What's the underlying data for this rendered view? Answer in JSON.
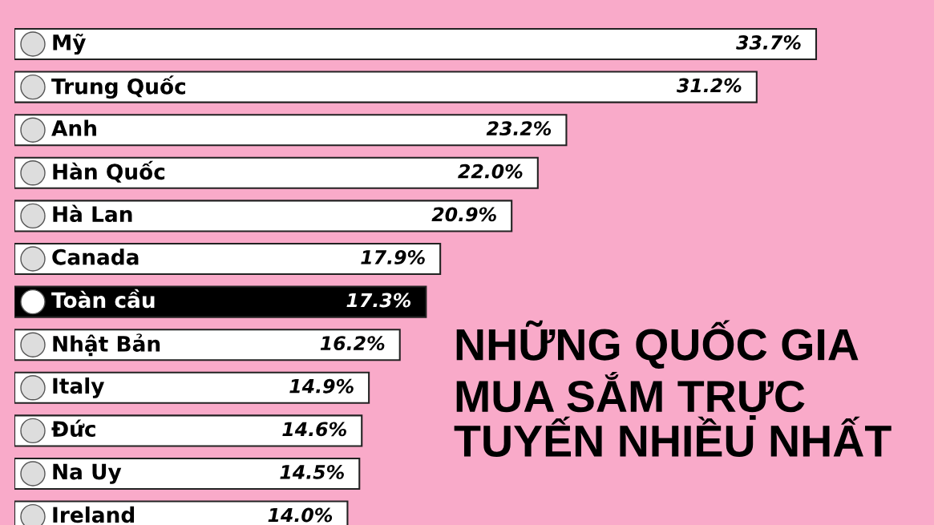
{
  "chart_data": {
    "type": "bar",
    "orientation": "horizontal",
    "title": "NHỮNG QUỐC GIA\nMUA SẮM TRỰC\nTUYẾN NHIỀU NHẤT",
    "categories": [
      "Mỹ",
      "Trung Quốc",
      "Anh",
      "Hàn Quốc",
      "Hà Lan",
      "Canada",
      "Toàn cầu",
      "Nhật Bản",
      "Italy",
      "Đức",
      "Na Uy",
      "Ireland"
    ],
    "values": [
      33.7,
      31.2,
      23.2,
      22.0,
      20.9,
      17.9,
      17.3,
      16.2,
      14.9,
      14.6,
      14.5,
      14.0
    ],
    "value_labels": [
      "33.7%",
      "31.2%",
      "23.2%",
      "22.0%",
      "20.9%",
      "17.9%",
      "17.3%",
      "16.2%",
      "14.9%",
      "14.6%",
      "14.5%",
      "14.0%"
    ],
    "colors": [
      "#ffffff",
      "#ffffff",
      "#ffffff",
      "#ffffff",
      "#ffffff",
      "#ffffff",
      "#000000",
      "#ffffff",
      "#ffffff",
      "#ffffff",
      "#ffffff",
      "#ffffff"
    ]
  }
}
